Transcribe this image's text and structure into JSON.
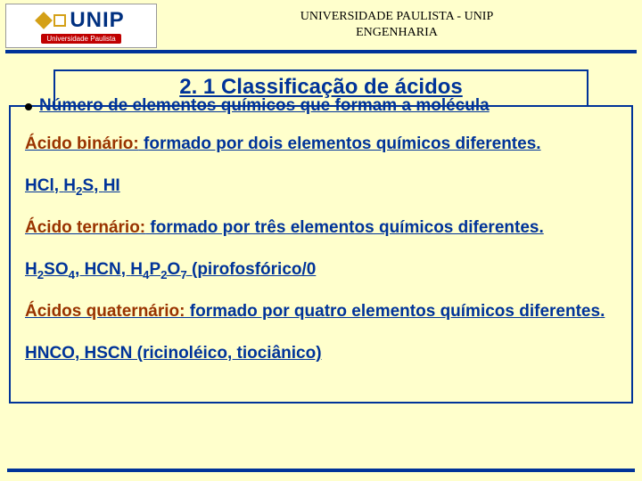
{
  "header": {
    "logo": {
      "brand": "UNIP",
      "sub": "Universidade Paulista"
    },
    "line1": "UNIVERSIDADE PAULISTA - UNIP",
    "line2": "ENGENHARIA"
  },
  "title": "2. 1 Classificação de ácidos",
  "bullet": "Número de elementos químicos que formam a molécula",
  "p1": {
    "term": "Ácido binário:",
    "rest": " formado por dois elementos químicos diferentes."
  },
  "p2": {
    "a": "HCl",
    "b_pre": "H",
    "b_sub": "2",
    "b_post": "S",
    "c": "HI"
  },
  "p3": {
    "term": "Ácido ternário:",
    "rest": " formado por três elementos químicos diferentes."
  },
  "p4": {
    "a_pre": "H",
    "a_sub1": "2",
    "a_mid": "SO",
    "a_sub2": "4",
    "b": "HCN",
    "c_pre": "H",
    "c_sub1": "4",
    "c_mid": "P",
    "c_sub2": "2",
    "c_mid2": "O",
    "c_sub3": "7",
    "c_tail": " (pirofosfórico/0"
  },
  "p5": {
    "term": "Ácidos quaternário:",
    "rest": " formado por quatro elementos químicos diferentes",
    "dot": "."
  },
  "p6": "HNCO, HSCN (ricinoléico, tiociânico)",
  "colors": {
    "background": "#ffffcc",
    "primary": "#003399",
    "accent": "#993300"
  }
}
